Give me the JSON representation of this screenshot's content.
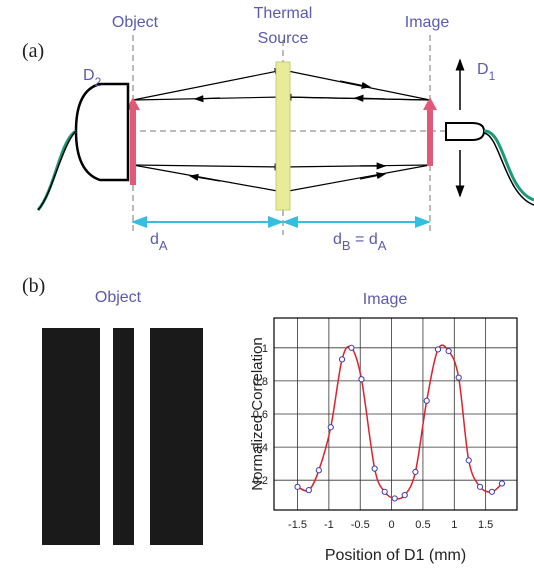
{
  "panel_a": {
    "label": "(a)",
    "object": "Object",
    "source_line1": "Thermal",
    "source_line2": "Source",
    "image": "Image",
    "d2": [
      "D",
      "2"
    ],
    "d1": [
      "D",
      "1"
    ],
    "distance_a": [
      "d",
      "A"
    ],
    "distance_b": [
      "d",
      "B",
      " = d",
      "A"
    ]
  },
  "panel_b": {
    "label": "(b)",
    "object": "Object",
    "image": "Image"
  },
  "chart_data": {
    "type": "line",
    "xlabel": "Position of D1 (mm)",
    "ylabel": "Normalized Correlation",
    "x": [
      -1.5,
      -1.32,
      -1.16,
      -0.97,
      -0.79,
      -0.64,
      -0.48,
      -0.27,
      -0.11,
      0.05,
      0.21,
      0.38,
      0.56,
      0.74,
      0.91,
      1.07,
      1.23,
      1.41,
      1.6,
      1.76
    ],
    "series": [
      {
        "color": "#e0202a",
        "values": [
          0.16,
          0.14,
          0.26,
          0.52,
          0.93,
          1.0,
          0.81,
          0.27,
          0.13,
          0.09,
          0.11,
          0.25,
          0.68,
          0.99,
          0.98,
          0.82,
          0.32,
          0.16,
          0.13,
          0.18
        ]
      }
    ],
    "xlim": [
      -1.875,
      2.0
    ],
    "ylim": [
      0.02,
      1.18
    ],
    "xticks": [
      -1.5,
      -1,
      -0.5,
      0,
      0.5,
      1,
      1.5
    ],
    "yticks": [
      0.2,
      0.4,
      0.6,
      0.8,
      1
    ],
    "grid": true
  }
}
